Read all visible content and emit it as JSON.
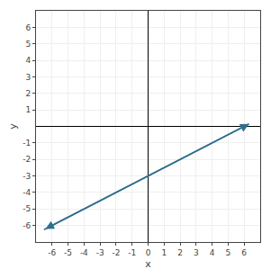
{
  "chart_data": {
    "type": "line",
    "xlabel": "x",
    "ylabel": "y",
    "x": [
      -6.5,
      6.3
    ],
    "values": [
      -6.25,
      0.15
    ],
    "color": "#2e6f8e",
    "marker": "arrow",
    "xlim": [
      -7,
      7
    ],
    "ylim": [
      -7,
      7
    ],
    "xticks": [
      -6,
      -5,
      -4,
      -3,
      -2,
      -1,
      0,
      1,
      2,
      3,
      4,
      5,
      6
    ],
    "yticks": [
      -6,
      -5,
      -4,
      -3,
      -2,
      -1,
      1,
      2,
      3,
      4,
      5,
      6
    ],
    "grid": true
  }
}
